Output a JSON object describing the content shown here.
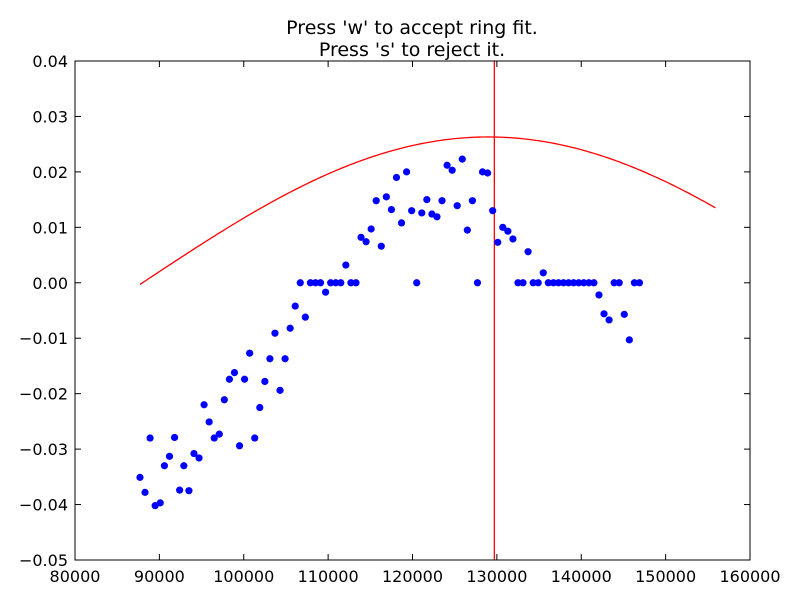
{
  "chart_data": {
    "type": "scatter",
    "title_lines": [
      "Press 'w' to accept ring fit.",
      "Press 's' to reject it."
    ],
    "xlabel": "",
    "ylabel": "",
    "xlim": [
      80000,
      160000
    ],
    "ylim": [
      -0.05,
      0.04
    ],
    "x_ticks": [
      80000,
      90000,
      100000,
      110000,
      120000,
      130000,
      140000,
      150000,
      160000
    ],
    "x_tick_labels": [
      "80000",
      "90000",
      "100000",
      "110000",
      "120000",
      "130000",
      "140000",
      "150000",
      "160000"
    ],
    "y_ticks": [
      -0.05,
      -0.04,
      -0.03,
      -0.02,
      -0.01,
      0.0,
      0.01,
      0.02,
      0.03,
      0.04
    ],
    "y_tick_labels": [
      "−0.05",
      "−0.04",
      "−0.03",
      "−0.02",
      "−0.01",
      "0.00",
      "0.01",
      "0.02",
      "0.03",
      "0.04"
    ],
    "grid": false,
    "colors": {
      "points": "#0000ff",
      "fit": "#ff0000",
      "vline": "#ff0000",
      "axes": "#000000"
    },
    "points": [
      [
        87700,
        -0.0351
      ],
      [
        88300,
        -0.0378
      ],
      [
        88900,
        -0.028
      ],
      [
        89500,
        -0.0402
      ],
      [
        90100,
        -0.0397
      ],
      [
        90600,
        -0.033
      ],
      [
        91200,
        -0.0313
      ],
      [
        91800,
        -0.0279
      ],
      [
        92400,
        -0.0374
      ],
      [
        92900,
        -0.033
      ],
      [
        93500,
        -0.0375
      ],
      [
        94100,
        -0.0308
      ],
      [
        94700,
        -0.0316
      ],
      [
        95300,
        -0.022
      ],
      [
        95900,
        -0.0251
      ],
      [
        96500,
        -0.028
      ],
      [
        97100,
        -0.0273
      ],
      [
        97700,
        -0.0211
      ],
      [
        98300,
        -0.0174
      ],
      [
        98900,
        -0.0162
      ],
      [
        99500,
        -0.0294
      ],
      [
        100100,
        -0.0174
      ],
      [
        100700,
        -0.0127
      ],
      [
        101300,
        -0.028
      ],
      [
        101900,
        -0.0225
      ],
      [
        102500,
        -0.0178
      ],
      [
        103100,
        -0.0137
      ],
      [
        103700,
        -0.0091
      ],
      [
        104300,
        -0.0194
      ],
      [
        104900,
        -0.0137
      ],
      [
        105500,
        -0.0082
      ],
      [
        106100,
        -0.0042
      ],
      [
        106700,
        0.0
      ],
      [
        107300,
        -0.0062
      ],
      [
        107900,
        0.0
      ],
      [
        108500,
        0.0
      ],
      [
        109100,
        0.0
      ],
      [
        109700,
        -0.0017
      ],
      [
        110300,
        0.0
      ],
      [
        110900,
        0.0
      ],
      [
        111500,
        0.0
      ],
      [
        112100,
        0.0032
      ],
      [
        112700,
        0.0
      ],
      [
        113300,
        0.0
      ],
      [
        113900,
        0.0082
      ],
      [
        114500,
        0.0074
      ],
      [
        115100,
        0.0097
      ],
      [
        115700,
        0.0148
      ],
      [
        116300,
        0.0066
      ],
      [
        116900,
        0.0155
      ],
      [
        117500,
        0.0132
      ],
      [
        118100,
        0.019
      ],
      [
        118700,
        0.0108
      ],
      [
        119300,
        0.02
      ],
      [
        119900,
        0.013
      ],
      [
        120500,
        0.0
      ],
      [
        121100,
        0.0126
      ],
      [
        121700,
        0.015
      ],
      [
        122300,
        0.0124
      ],
      [
        122900,
        0.0119
      ],
      [
        123500,
        0.0148
      ],
      [
        124100,
        0.0212
      ],
      [
        124700,
        0.0203
      ],
      [
        125300,
        0.0139
      ],
      [
        125900,
        0.0223
      ],
      [
        126500,
        0.0095
      ],
      [
        127100,
        0.0148
      ],
      [
        127700,
        0.0
      ],
      [
        128300,
        0.02
      ],
      [
        128900,
        0.0198
      ],
      [
        129500,
        0.013
      ],
      [
        130100,
        0.0073
      ],
      [
        130700,
        0.01
      ],
      [
        131300,
        0.0093
      ],
      [
        131900,
        0.0079
      ],
      [
        132500,
        0.0
      ],
      [
        133100,
        0.0
      ],
      [
        133700,
        0.0056
      ],
      [
        134300,
        0.0
      ],
      [
        134900,
        0.0
      ],
      [
        135500,
        0.0018
      ],
      [
        136100,
        0.0
      ],
      [
        136700,
        0.0
      ],
      [
        137300,
        0.0
      ],
      [
        137900,
        0.0
      ],
      [
        138500,
        0.0
      ],
      [
        139100,
        0.0
      ],
      [
        139700,
        0.0
      ],
      [
        140300,
        0.0
      ],
      [
        140900,
        0.0
      ],
      [
        141500,
        0.0
      ],
      [
        142100,
        -0.0022
      ],
      [
        142700,
        -0.0056
      ],
      [
        143300,
        -0.0067
      ],
      [
        143900,
        0.0
      ],
      [
        144500,
        0.0
      ],
      [
        145100,
        -0.0057
      ],
      [
        145700,
        -0.0103
      ],
      [
        146300,
        0.0
      ],
      [
        146900,
        0.0
      ]
    ],
    "fit_curve": {
      "form": "A*sin(2*pi*(x - x0)/P)",
      "A": 0.0263,
      "P": 164000,
      "x0": 88000,
      "x_range": [
        87700,
        155900
      ]
    },
    "vertical_line_x": 129700
  }
}
